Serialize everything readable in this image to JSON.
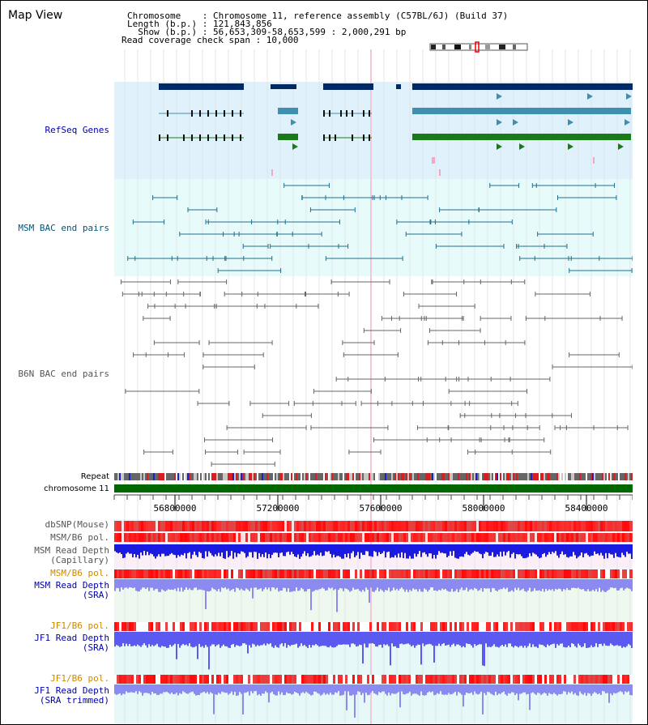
{
  "title": "Map View",
  "info": {
    "chromosome": "Chromosome    : Chromosome 11, reference assembly (C57BL/6J) (Build 37)",
    "length": "Length (b.p.) : 121,843,856",
    "show": "  Show (b.p.) : 56,653,309-58,653,599 : 2,000,291 bp",
    "coverage": "Read coverage check span : 10,000"
  },
  "track_labels": {
    "refseq": "RefSeq Genes",
    "msm_bac": "MSM BAC end pairs",
    "b6n_bac": "B6N BAC end pairs",
    "repeat": "Repeat",
    "chromosome": "chromosome 11",
    "dbsnp": "dbSNP(Mouse)",
    "msm_b6_pol": "MSM/B6 pol.",
    "msm_depth_cap_1": "MSM Read Depth",
    "msm_depth_cap_2": "(Capillary)",
    "msm_b6_pol_2": "MSM/B6 pol.",
    "msm_depth_sra_1": "MSM Read Depth",
    "msm_depth_sra_2": "(SRA)",
    "jf1_b6_pol": "JF1/B6 pol.",
    "jf1_depth_sra_1": "JF1 Read Depth",
    "jf1_depth_sra_2": "(SRA)",
    "jf1_b6_pol_2": "JF1/B6 pol.",
    "jf1_depth_trim_1": "JF1 Read Depth",
    "jf1_depth_trim_2": "(SRA trimmed)"
  },
  "axis_ticks": [
    "56800000",
    "57200000",
    "57600000",
    "58000000",
    "58400000"
  ],
  "colors": {
    "label_blue": "#0000aa",
    "label_teal": "#005577",
    "label_orange": "#cc8800",
    "refseq_bg": "#dff1fb",
    "msm_bg": "#e8fbfb",
    "chromosome_green": "#006600",
    "gene_dark": "#002a66",
    "gene_mid": "#3f8fb0",
    "gene_green": "#1a7a1a"
  }
}
